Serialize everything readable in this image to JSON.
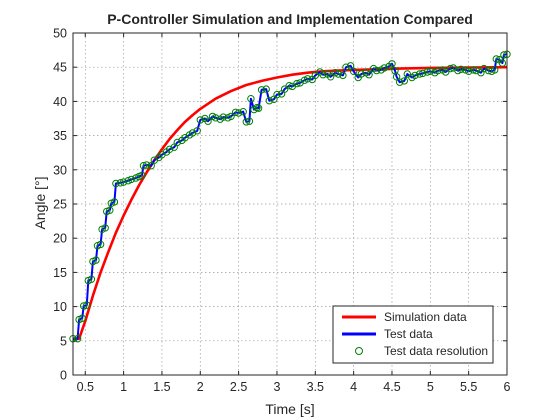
{
  "chart_data": {
    "type": "line",
    "title": "P-Controller Simulation and Implementation Compared",
    "xlabel": "Time [s]",
    "ylabel": "Angle [°]",
    "xlim": [
      0.34,
      6.0
    ],
    "ylim": [
      0,
      50
    ],
    "xticks": [
      0.5,
      1,
      1.5,
      2,
      2.5,
      3,
      3.5,
      4,
      4.5,
      5,
      5.5,
      6
    ],
    "xtick_labels": [
      "0.5",
      "1",
      "1.5",
      "2",
      "2.5",
      "3",
      "3.5",
      "4",
      "4.5",
      "5",
      "5.5",
      "6"
    ],
    "yticks": [
      0,
      5,
      10,
      15,
      20,
      25,
      30,
      35,
      40,
      45,
      50
    ],
    "ytick_labels": [
      "0",
      "5",
      "10",
      "15",
      "20",
      "25",
      "30",
      "35",
      "40",
      "45",
      "50"
    ],
    "grid": true,
    "legend_position": "bottom-right",
    "colors": {
      "simulation": "#ff0000",
      "test": "#0000ff",
      "resolution": "#008000"
    },
    "series": [
      {
        "name": "Simulation data",
        "style": "line",
        "x": [
          0.34,
          0.42,
          0.5,
          0.6,
          0.7,
          0.8,
          0.9,
          1.0,
          1.1,
          1.2,
          1.3,
          1.4,
          1.5,
          1.6,
          1.7,
          1.8,
          1.9,
          2.0,
          2.2,
          2.4,
          2.6,
          2.8,
          3.0,
          3.2,
          3.4,
          3.6,
          3.8,
          4.0,
          4.3,
          4.6,
          5.0,
          5.5,
          6.0
        ],
        "y": [
          5.3,
          5.3,
          7.9,
          11.6,
          15.0,
          18.0,
          20.8,
          23.3,
          25.6,
          27.7,
          29.6,
          31.4,
          33.0,
          34.5,
          35.8,
          37.0,
          38.0,
          38.9,
          40.4,
          41.5,
          42.4,
          43.0,
          43.5,
          43.9,
          44.2,
          44.4,
          44.5,
          44.6,
          44.7,
          44.8,
          44.9,
          44.95,
          45.0
        ]
      },
      {
        "name": "Test data",
        "style": "line",
        "x": [
          0.34,
          0.4,
          0.42,
          0.46,
          0.48,
          0.52,
          0.54,
          0.58,
          0.6,
          0.64,
          0.66,
          0.7,
          0.72,
          0.76,
          0.78,
          0.82,
          0.84,
          0.88,
          0.9,
          0.96,
          1.0,
          1.06,
          1.1,
          1.16,
          1.2,
          1.24,
          1.26,
          1.3,
          1.36,
          1.4,
          1.46,
          1.5,
          1.56,
          1.6,
          1.66,
          1.7,
          1.76,
          1.8,
          1.86,
          1.9,
          1.96,
          2.0,
          2.06,
          2.1,
          2.16,
          2.2,
          2.26,
          2.3,
          2.36,
          2.4,
          2.46,
          2.5,
          2.56,
          2.6,
          2.64,
          2.66,
          2.7,
          2.74,
          2.76,
          2.8,
          2.86,
          2.9,
          2.96,
          3.0,
          3.06,
          3.1,
          3.16,
          3.2,
          3.26,
          3.3,
          3.36,
          3.4,
          3.46,
          3.5,
          3.56,
          3.6,
          3.66,
          3.7,
          3.76,
          3.8,
          3.86,
          3.9,
          3.96,
          4.0,
          4.06,
          4.1,
          4.16,
          4.2,
          4.26,
          4.3,
          4.36,
          4.4,
          4.46,
          4.5,
          4.54,
          4.56,
          4.6,
          4.66,
          4.7,
          4.76,
          4.8,
          4.86,
          4.9,
          4.96,
          5.0,
          5.06,
          5.1,
          5.16,
          5.2,
          5.26,
          5.3,
          5.36,
          5.4,
          5.46,
          5.5,
          5.56,
          5.6,
          5.66,
          5.7,
          5.76,
          5.8,
          5.84,
          5.86,
          5.9,
          5.94,
          5.96,
          6.0
        ],
        "y": [
          5.3,
          5.3,
          8.1,
          8.3,
          10.1,
          10.2,
          13.8,
          14.0,
          16.6,
          16.8,
          18.9,
          19.1,
          21.3,
          21.5,
          23.9,
          24.1,
          25.1,
          25.3,
          28.0,
          28.1,
          28.2,
          28.4,
          28.6,
          28.8,
          29.0,
          29.2,
          30.6,
          30.7,
          30.6,
          31.4,
          31.8,
          32.2,
          32.6,
          33.0,
          33.3,
          34.0,
          34.3,
          34.7,
          35.1,
          35.4,
          35.7,
          37.3,
          37.5,
          37.1,
          37.8,
          37.6,
          37.4,
          37.7,
          37.6,
          37.8,
          38.4,
          38.3,
          38.5,
          37.0,
          37.1,
          40.4,
          38.8,
          39.1,
          39.0,
          41.7,
          41.8,
          40.1,
          40.3,
          41.0,
          41.1,
          41.8,
          42.3,
          42.2,
          42.6,
          42.7,
          43.1,
          43.3,
          43.2,
          43.8,
          44.3,
          43.9,
          44.0,
          43.6,
          44.2,
          44.0,
          43.8,
          45.0,
          45.2,
          44.4,
          43.5,
          44.0,
          44.2,
          43.9,
          44.8,
          44.5,
          44.6,
          44.9,
          45.1,
          45.5,
          44.5,
          43.6,
          42.8,
          43.0,
          44.0,
          43.5,
          43.8,
          44.0,
          44.1,
          44.3,
          44.4,
          44.2,
          44.5,
          44.6,
          44.3,
          44.8,
          44.9,
          44.5,
          44.7,
          44.6,
          44.4,
          44.6,
          44.5,
          44.2,
          44.8,
          44.5,
          44.4,
          44.6,
          46.2,
          46.1,
          45.6,
          46.8,
          46.9
        ]
      },
      {
        "name": "Test data resolution",
        "style": "markers",
        "source": "Test data"
      }
    ]
  }
}
